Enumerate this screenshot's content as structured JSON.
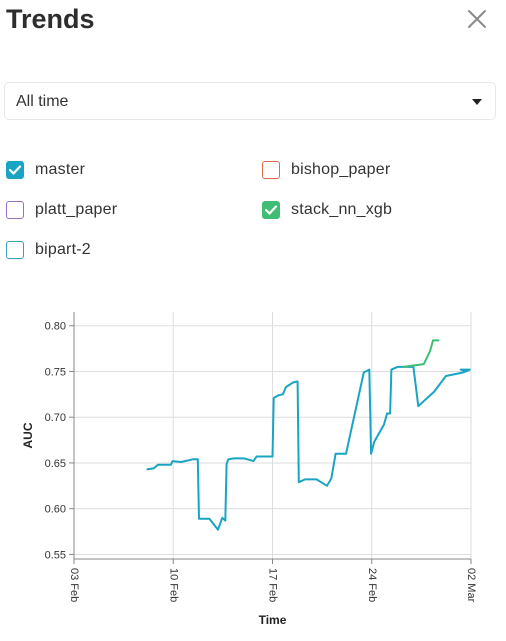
{
  "header": {
    "title": "Trends",
    "close_icon": "close-icon"
  },
  "range_select": {
    "value": "All time",
    "caret_icon": "caret-down-icon"
  },
  "series_filters": [
    {
      "label": "master",
      "checked": true,
      "color": "#1aa4c4"
    },
    {
      "label": "bishop_paper",
      "checked": false,
      "color": "#e06b48"
    },
    {
      "label": "platt_paper",
      "checked": false,
      "color": "#9b6fc9"
    },
    {
      "label": "stack_nn_xgb",
      "checked": true,
      "color": "#3fbe73"
    },
    {
      "label": "bipart-2",
      "checked": false,
      "color": "#3a9ec0"
    }
  ],
  "chart_data": {
    "type": "line",
    "xlabel": "Time",
    "ylabel": "AUC",
    "ylim": [
      0.545,
      0.815
    ],
    "xlim": [
      "2021-02-03",
      "2021-03-02"
    ],
    "x_ticks": [
      "03 Feb",
      "10 Feb",
      "17 Feb",
      "24 Feb",
      "02 Mar"
    ],
    "y_ticks": [
      "0.80",
      "0.75",
      "0.70",
      "0.65",
      "0.60",
      "0.55"
    ],
    "grid": true,
    "series": [
      {
        "name": "master",
        "color": "#1aa4c4",
        "points": [
          [
            "2021-02-08 00:00",
            0.643
          ],
          [
            "2021-02-08 10:00",
            0.644
          ],
          [
            "2021-02-08 17:00",
            0.648
          ],
          [
            "2021-02-09 14:00",
            0.648
          ],
          [
            "2021-02-09 17:00",
            0.652
          ],
          [
            "2021-02-10 07:00",
            0.651
          ],
          [
            "2021-02-11 02:00",
            0.654
          ],
          [
            "2021-02-11 10:00",
            0.654
          ],
          [
            "2021-02-11 12:00",
            0.589
          ],
          [
            "2021-02-12 05:00",
            0.589
          ],
          [
            "2021-02-12 19:00",
            0.577
          ],
          [
            "2021-02-13 02:00",
            0.59
          ],
          [
            "2021-02-13 07:00",
            0.587
          ],
          [
            "2021-02-13 09:00",
            0.649
          ],
          [
            "2021-02-13 12:00",
            0.654
          ],
          [
            "2021-02-13 21:00",
            0.655
          ],
          [
            "2021-02-14 14:00",
            0.655
          ],
          [
            "2021-02-15 05:00",
            0.652
          ],
          [
            "2021-02-15 10:00",
            0.657
          ],
          [
            "2021-02-16 12:00",
            0.657
          ],
          [
            "2021-02-16 14:00",
            0.721
          ],
          [
            "2021-02-16 22:00",
            0.724
          ],
          [
            "2021-02-17 05:00",
            0.725
          ],
          [
            "2021-02-17 10:00",
            0.733
          ],
          [
            "2021-02-17 22:00",
            0.738
          ],
          [
            "2021-02-18 05:00",
            0.739
          ],
          [
            "2021-02-18 07:00",
            0.629
          ],
          [
            "2021-02-18 17:00",
            0.632
          ],
          [
            "2021-02-19 12:00",
            0.632
          ],
          [
            "2021-02-20 05:00",
            0.625
          ],
          [
            "2021-02-20 12:00",
            0.633
          ],
          [
            "2021-02-20 19:00",
            0.66
          ],
          [
            "2021-02-21 12:00",
            0.66
          ],
          [
            "2021-02-22 17:00",
            0.749
          ],
          [
            "2021-02-23 02:00",
            0.752
          ],
          [
            "2021-02-23 05:00",
            0.66
          ],
          [
            "2021-02-23 10:00",
            0.673
          ],
          [
            "2021-02-24 02:00",
            0.692
          ],
          [
            "2021-02-24 07:00",
            0.704
          ],
          [
            "2021-02-24 12:00",
            0.704
          ],
          [
            "2021-02-24 14:00",
            0.752
          ],
          [
            "2021-02-25 00:00",
            0.755
          ],
          [
            "2021-02-25 10:00",
            0.755
          ],
          [
            "2021-02-26 02:00",
            0.755
          ],
          [
            "2021-02-26 10:00",
            0.712
          ],
          [
            "2021-02-27 12:00",
            0.728
          ],
          [
            "2021-02-28 07:00",
            0.745
          ],
          [
            "2021-02-29 12:00",
            0.749
          ],
          [
            "2021-02-29 22:00",
            0.752
          ],
          [
            "2021-03-01 07:00",
            0.752
          ],
          [
            "2021-03-01 12:00",
            0.751
          ]
        ]
      },
      {
        "name": "stack_nn_xgb",
        "color": "#3fbe73",
        "points": [
          [
            "2021-02-25 10:00",
            0.755
          ],
          [
            "2021-02-26 19:00",
            0.758
          ],
          [
            "2021-02-27 05:00",
            0.772
          ],
          [
            "2021-02-27 10:00",
            0.784
          ],
          [
            "2021-02-27 14:00",
            0.784
          ],
          [
            "2021-02-27 19:00",
            0.784
          ]
        ]
      }
    ]
  }
}
